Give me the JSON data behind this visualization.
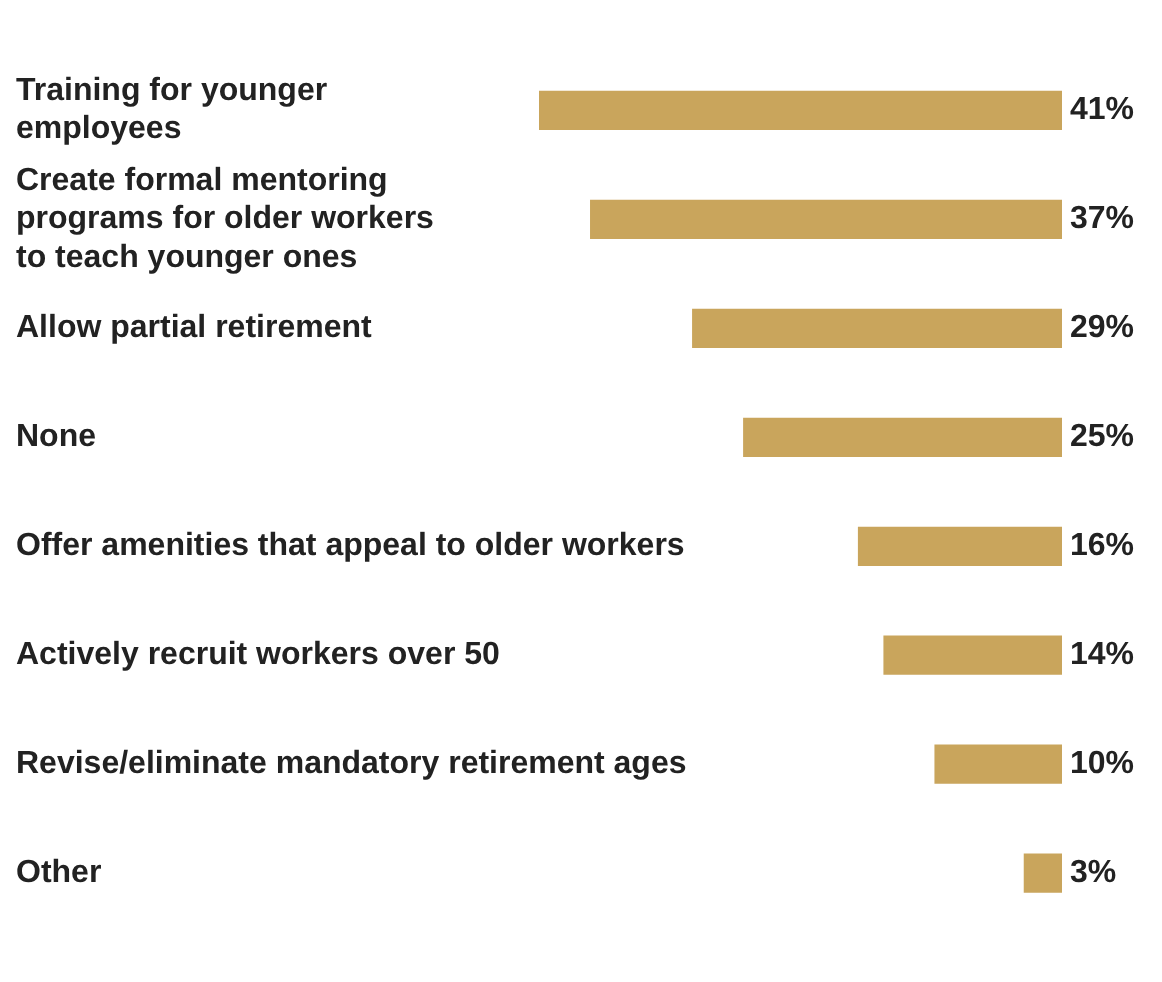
{
  "chart_data": {
    "type": "bar",
    "orientation": "horizontal",
    "categories": [
      "Training for younger\nemployees",
      "Create formal mentoring\nprograms for older workers\nto teach younger ones",
      "Allow partial retirement",
      "None",
      "Offer amenities that appeal to older workers",
      "Actively recruit workers over 50",
      "Revise/eliminate mandatory retirement ages",
      "Other"
    ],
    "values": [
      41,
      37,
      29,
      25,
      16,
      14,
      10,
      3
    ],
    "value_labels": [
      "41%",
      "37%",
      "29%",
      "25%",
      "16%",
      "14%",
      "10%",
      "3%"
    ],
    "color": "#c9a55c",
    "legend": false
  }
}
